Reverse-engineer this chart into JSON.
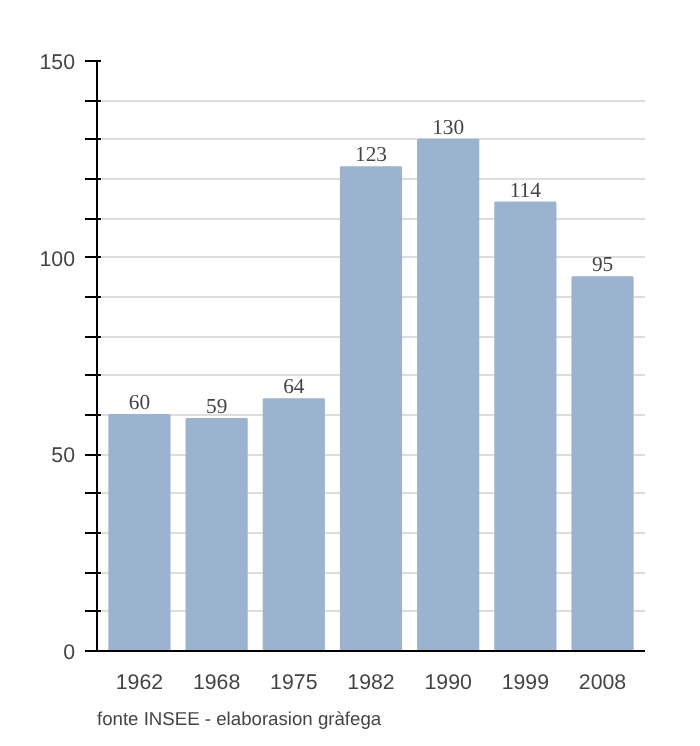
{
  "chart_data": {
    "type": "bar",
    "categories": [
      "1962",
      "1968",
      "1975",
      "1982",
      "1990",
      "1999",
      "2008"
    ],
    "values": [
      60,
      59,
      64,
      123,
      130,
      114,
      95
    ],
    "color": "#9bb3cf",
    "data_labels": true,
    "grid": "y",
    "ylim": [
      0,
      150
    ],
    "yticks": [
      0,
      {
        "value": 10,
        "label": null
      },
      {
        "value": 20,
        "label": null
      },
      {
        "value": 30,
        "label": null
      },
      {
        "value": 40,
        "label": null
      },
      50,
      {
        "value": 60,
        "label": null
      },
      {
        "value": 70,
        "label": null
      },
      {
        "value": 80,
        "label": null
      },
      {
        "value": 90,
        "label": null
      },
      100,
      {
        "value": 110,
        "label": null
      },
      {
        "value": 120,
        "label": null
      },
      {
        "value": 130,
        "label": null
      },
      {
        "value": 140,
        "label": null
      },
      150
    ],
    "annotations": [
      "fonte INSEE - elaborasion gràfega"
    ]
  }
}
